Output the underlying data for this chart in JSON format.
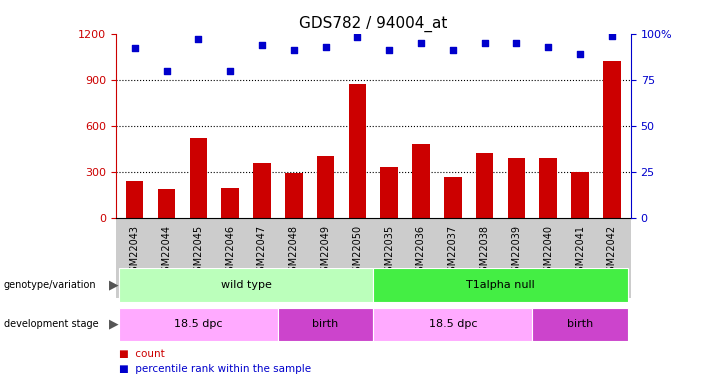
{
  "title": "GDS782 / 94004_at",
  "samples": [
    "GSM22043",
    "GSM22044",
    "GSM22045",
    "GSM22046",
    "GSM22047",
    "GSM22048",
    "GSM22049",
    "GSM22050",
    "GSM22035",
    "GSM22036",
    "GSM22037",
    "GSM22038",
    "GSM22039",
    "GSM22040",
    "GSM22041",
    "GSM22042"
  ],
  "counts": [
    240,
    185,
    520,
    195,
    355,
    290,
    400,
    870,
    330,
    480,
    265,
    420,
    390,
    390,
    295,
    1020
  ],
  "percentile_ranks": [
    92,
    80,
    97,
    80,
    94,
    91,
    93,
    98,
    91,
    95,
    91,
    95,
    95,
    93,
    89,
    99
  ],
  "ylim_left": [
    0,
    1200
  ],
  "ylim_right": [
    0,
    100
  ],
  "yticks_left": [
    0,
    300,
    600,
    900,
    1200
  ],
  "yticks_right": [
    0,
    25,
    50,
    75,
    100
  ],
  "bar_color": "#cc0000",
  "dot_color": "#0000cc",
  "background_color": "#ffffff",
  "grid_color": "#000000",
  "genotype_groups": [
    {
      "label": "wild type",
      "start": 0,
      "end": 8,
      "color": "#bbffbb"
    },
    {
      "label": "T1alpha null",
      "start": 8,
      "end": 16,
      "color": "#44ee44"
    }
  ],
  "stage_groups": [
    {
      "label": "18.5 dpc",
      "start": 0,
      "end": 5,
      "color": "#ffaaff"
    },
    {
      "label": "birth",
      "start": 5,
      "end": 8,
      "color": "#cc44cc"
    },
    {
      "label": "18.5 dpc",
      "start": 8,
      "end": 13,
      "color": "#ffaaff"
    },
    {
      "label": "birth",
      "start": 13,
      "end": 16,
      "color": "#cc44cc"
    }
  ],
  "legend_items": [
    {
      "label": "count",
      "color": "#cc0000"
    },
    {
      "label": "percentile rank within the sample",
      "color": "#0000cc"
    }
  ],
  "xlabel_fontsize": 7,
  "tick_fontsize": 8,
  "title_fontsize": 11,
  "xtick_bg_color": "#cccccc"
}
